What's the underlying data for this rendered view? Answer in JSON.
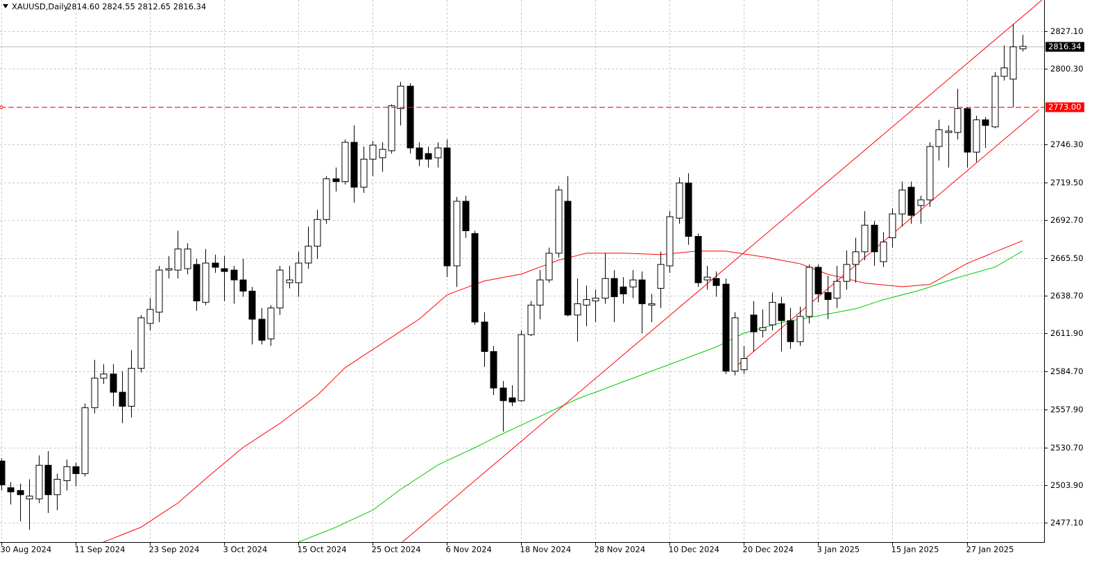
{
  "chart_data": {
    "type": "candlestick",
    "title": "XAUUSD,Daily",
    "quote": "2814.60 2824.55 2812.65 2816.34",
    "categories": [
      "30 Aug 2024",
      null,
      null,
      null,
      null,
      null,
      null,
      null,
      "11 Sep 2024",
      null,
      null,
      null,
      null,
      null,
      null,
      null,
      "23 Sep 2024",
      null,
      null,
      null,
      null,
      null,
      null,
      null,
      "3 Oct 2024",
      null,
      null,
      null,
      null,
      null,
      null,
      null,
      "15 Oct 2024",
      null,
      null,
      null,
      null,
      null,
      null,
      null,
      "25 Oct 2024",
      null,
      null,
      null,
      null,
      null,
      null,
      null,
      "6 Nov 2024",
      null,
      null,
      null,
      null,
      null,
      null,
      null,
      "18 Nov 2024",
      null,
      null,
      null,
      null,
      null,
      null,
      null,
      "28 Nov 2024",
      null,
      null,
      null,
      null,
      null,
      null,
      null,
      "10 Dec 2024",
      null,
      null,
      null,
      null,
      null,
      null,
      null,
      "20 Dec 2024",
      null,
      null,
      null,
      null,
      null,
      null,
      null,
      "3 Jan 2025",
      null,
      null,
      null,
      null,
      null,
      null,
      null,
      "15 Jan 2025",
      null,
      null,
      null,
      null,
      null,
      null,
      null,
      "27 Jan 2025",
      null,
      null,
      null,
      null,
      null,
      null
    ],
    "open": [
      2521,
      2502,
      2500,
      2494,
      2494,
      2518,
      2497,
      2507,
      2517,
      2512,
      2559,
      2580,
      2583,
      2570,
      2560,
      2587,
      2619,
      2627,
      2657,
      2657,
      2658,
      2661,
      2634,
      2662,
      2658,
      2657,
      2650,
      2642,
      2622,
      2608,
      2630,
      2648,
      2648,
      2662,
      2674,
      2693,
      2722,
      2720,
      2748,
      2716,
      2736,
      2737,
      2742,
      2772,
      2788,
      2744,
      2740,
      2737,
      2744,
      2660,
      2706,
      2683,
      2620,
      2599,
      2573,
      2566,
      2564,
      2611,
      2632,
      2650,
      2669,
      2706,
      2625,
      2632,
      2635,
      2637,
      2651,
      2645,
      2645,
      2650,
      2632,
      2644,
      2660,
      2694,
      2719,
      2681,
      2650,
      2651,
      2647,
      2585,
      2586,
      2625,
      2614,
      2618,
      2633,
      2621,
      2606,
      2624,
      2659,
      2641,
      2637,
      2649,
      2661,
      2670,
      2689,
      2663,
      2680,
      2697,
      2716,
      2703,
      2707,
      2745,
      2755,
      2755,
      2772,
      2741,
      2764,
      2759,
      2795,
      2793,
      2814.6
    ],
    "high": [
      2523,
      2506,
      2505,
      2508,
      2525,
      2528,
      2512,
      2522,
      2520,
      2562,
      2593,
      2590,
      2590,
      2585,
      2600,
      2625,
      2637,
      2660,
      2667,
      2685,
      2676,
      2665,
      2672,
      2668,
      2667,
      2660,
      2665,
      2645,
      2630,
      2632,
      2660,
      2660,
      2670,
      2688,
      2700,
      2724,
      2730,
      2750,
      2760,
      2745,
      2749,
      2748,
      2775,
      2791,
      2790,
      2748,
      2745,
      2748,
      2750,
      2709,
      2710,
      2685,
      2627,
      2603,
      2578,
      2575,
      2614,
      2635,
      2657,
      2673,
      2717,
      2724,
      2651,
      2646,
      2643,
      2669,
      2657,
      2652,
      2657,
      2656,
      2640,
      2670,
      2699,
      2723,
      2726,
      2683,
      2660,
      2656,
      2651,
      2627,
      2603,
      2635,
      2629,
      2641,
      2638,
      2630,
      2631,
      2661,
      2661,
      2653,
      2660,
      2671,
      2680,
      2699,
      2692,
      2684,
      2701,
      2720,
      2720,
      2710,
      2748,
      2764,
      2760,
      2786,
      2773,
      2767,
      2766,
      2798,
      2817,
      2832,
      2824.55
    ],
    "low": [
      2500,
      2490,
      2478,
      2472,
      2491,
      2484,
      2486,
      2500,
      2503,
      2510,
      2555,
      2576,
      2560,
      2548,
      2552,
      2584,
      2614,
      2620,
      2651,
      2651,
      2654,
      2628,
      2632,
      2655,
      2635,
      2633,
      2638,
      2604,
      2604,
      2603,
      2625,
      2644,
      2638,
      2658,
      2665,
      2690,
      2713,
      2718,
      2705,
      2712,
      2724,
      2727,
      2740,
      2760,
      2740,
      2731,
      2730,
      2730,
      2652,
      2645,
      2680,
      2618,
      2588,
      2568,
      2542,
      2560,
      2563,
      2610,
      2622,
      2648,
      2666,
      2624,
      2606,
      2617,
      2620,
      2633,
      2620,
      2633,
      2637,
      2612,
      2620,
      2630,
      2655,
      2690,
      2675,
      2645,
      2643,
      2638,
      2583,
      2582,
      2583,
      2599,
      2609,
      2614,
      2599,
      2601,
      2603,
      2619,
      2634,
      2622,
      2630,
      2643,
      2648,
      2664,
      2660,
      2659,
      2673,
      2688,
      2690,
      2690,
      2702,
      2735,
      2730,
      2750,
      2730,
      2734,
      2744,
      2758,
      2792,
      2773,
      2812.65
    ],
    "close": [
      2504,
      2499,
      2497,
      2496,
      2518,
      2497,
      2508,
      2517,
      2512,
      2559,
      2580,
      2583,
      2570,
      2560,
      2587,
      2623,
      2629,
      2657,
      2658,
      2672,
      2672,
      2635,
      2662,
      2659,
      2656,
      2650,
      2642,
      2622,
      2607,
      2630,
      2657,
      2650,
      2662,
      2674,
      2693,
      2722,
      2720,
      2748,
      2716,
      2736,
      2746,
      2743,
      2774,
      2788,
      2744,
      2736,
      2736,
      2744,
      2660,
      2706,
      2685,
      2620,
      2599,
      2573,
      2564,
      2563,
      2611,
      2632,
      2650,
      2669,
      2714,
      2625,
      2633,
      2636,
      2637,
      2651,
      2638,
      2640,
      2650,
      2633,
      2633,
      2661,
      2695,
      2719,
      2681,
      2648,
      2652,
      2646,
      2585,
      2623,
      2594,
      2613,
      2616,
      2634,
      2621,
      2606,
      2624,
      2659,
      2640,
      2636,
      2649,
      2661,
      2670,
      2689,
      2670,
      2677,
      2697,
      2714,
      2696,
      2707,
      2745,
      2757,
      2756,
      2772,
      2741,
      2764,
      2760,
      2795,
      2801,
      2816,
      2816.34
    ],
    "up_color": "#ffffff",
    "down_color": "#000000",
    "series": [
      {
        "color": "#ff0000",
        "values": [
          null,
          null,
          null,
          null,
          null,
          null,
          null,
          null,
          null,
          null,
          null,
          2463.3,
          2465.9,
          2468.5,
          2471.1,
          2473.7,
          2478.0,
          2482.4,
          2486.7,
          2491.0,
          2496.8,
          2502.5,
          2508.3,
          2513.9,
          2519.4,
          2525.0,
          2530.5,
          2534.8,
          2539.2,
          2543.5,
          2547.8,
          2552.8,
          2557.7,
          2562.7,
          2567.6,
          2574.2,
          2580.8,
          2587.4,
          2591.7,
          2596.1,
          2600.4,
          2604.7,
          2609.0,
          2613.4,
          2617.7,
          2622.0,
          2627.8,
          2633.5,
          2639.3,
          2641.8,
          2644.3,
          2646.7,
          2649.2,
          2650.4,
          2651.7,
          2652.9,
          2654.1,
          2656.6,
          2659.1,
          2661.5,
          2664.0,
          2665.7,
          2667.3,
          2669.0,
          2669.0,
          2669.0,
          2669.0,
          2669.0,
          2668.8,
          2668.5,
          2668.3,
          2668.0,
          2668.6,
          2669.3,
          2669.9,
          2670.5,
          2670.5,
          2670.5,
          2670.5,
          2669.5,
          2668.5,
          2667.5,
          2666.5,
          2665.3,
          2664.0,
          2662.8,
          2661.6,
          2659.1,
          2656.6,
          2654.1,
          2652.5,
          2650.9,
          2649.3,
          2647.7,
          2647.1,
          2646.4,
          2645.8,
          2645.2,
          2645.7,
          2646.2,
          2646.7,
          2650.4,
          2654.2,
          2657.9,
          2661.6,
          2664.3,
          2667.0,
          2669.8,
          2672.5,
          2675.2,
          2677.9
        ]
      },
      {
        "color": "#00c800",
        "values": [
          null,
          null,
          null,
          null,
          null,
          null,
          null,
          null,
          null,
          null,
          null,
          null,
          null,
          null,
          null,
          null,
          null,
          null,
          null,
          null,
          null,
          null,
          null,
          null,
          null,
          null,
          null,
          null,
          null,
          null,
          null,
          null,
          2463.3,
          2465.9,
          2468.5,
          2471.1,
          2473.7,
          2476.8,
          2479.9,
          2482.9,
          2486.0,
          2490.9,
          2495.9,
          2500.8,
          2505.1,
          2509.5,
          2513.8,
          2518.1,
          2521.2,
          2524.3,
          2527.4,
          2530.5,
          2533.8,
          2537.1,
          2540.4,
          2543.5,
          2546.6,
          2549.6,
          2552.7,
          2555.8,
          2558.9,
          2562.0,
          2565.1,
          2567.6,
          2570.0,
          2572.5,
          2575.0,
          2577.5,
          2579.9,
          2582.4,
          2584.9,
          2587.4,
          2589.8,
          2592.3,
          2594.8,
          2597.3,
          2599.7,
          2602.2,
          2605.5,
          2608.8,
          2612.1,
          2614.0,
          2615.8,
          2617.7,
          2619.5,
          2620.7,
          2622.0,
          2623.2,
          2624.4,
          2625.7,
          2626.9,
          2628.2,
          2629.4,
          2631.5,
          2633.7,
          2635.8,
          2637.5,
          2639.3,
          2641.0,
          2642.7,
          2644.9,
          2647.2,
          2649.4,
          2651.6,
          2653.5,
          2655.3,
          2657.2,
          2659.0,
          2662.8,
          2666.7,
          2670.5
        ]
      }
    ],
    "trendlines": [
      {
        "color": "#ff0000",
        "x": [
          43.2,
          112.1
        ],
        "y": [
          2463.3,
          2849.3
        ]
      },
      {
        "color": "#ff0000",
        "x": [
          79.4,
          111.8
        ],
        "y": [
          2589.8,
          2771.2
        ]
      }
    ],
    "level": {
      "value": 2773,
      "label": "2773.00",
      "color": "#ff0000"
    },
    "current_price": {
      "value": 2816.34,
      "label": "2816.34"
    },
    "ylim": [
      2463.26,
      2849.35
    ],
    "yticks": [
      {
        "value": 2477.1,
        "label": "2477.10"
      },
      {
        "value": 2503.9,
        "label": "2503.90"
      },
      {
        "value": 2530.7,
        "label": "2530.70"
      },
      {
        "value": 2557.9,
        "label": "2557.90"
      },
      {
        "value": 2584.7,
        "label": "2584.70"
      },
      {
        "value": 2611.9,
        "label": "2611.90"
      },
      {
        "value": 2638.7,
        "label": "2638.70"
      },
      {
        "value": 2665.5,
        "label": "2665.50"
      },
      {
        "value": 2692.7,
        "label": "2692.70"
      },
      {
        "value": 2719.5,
        "label": "2719.50"
      },
      {
        "value": 2746.3,
        "label": "2746.30"
      },
      {
        "value": 2800.3,
        "label": "2800.30"
      },
      {
        "value": 2827.1,
        "label": "2827.10"
      }
    ],
    "grid": true
  }
}
